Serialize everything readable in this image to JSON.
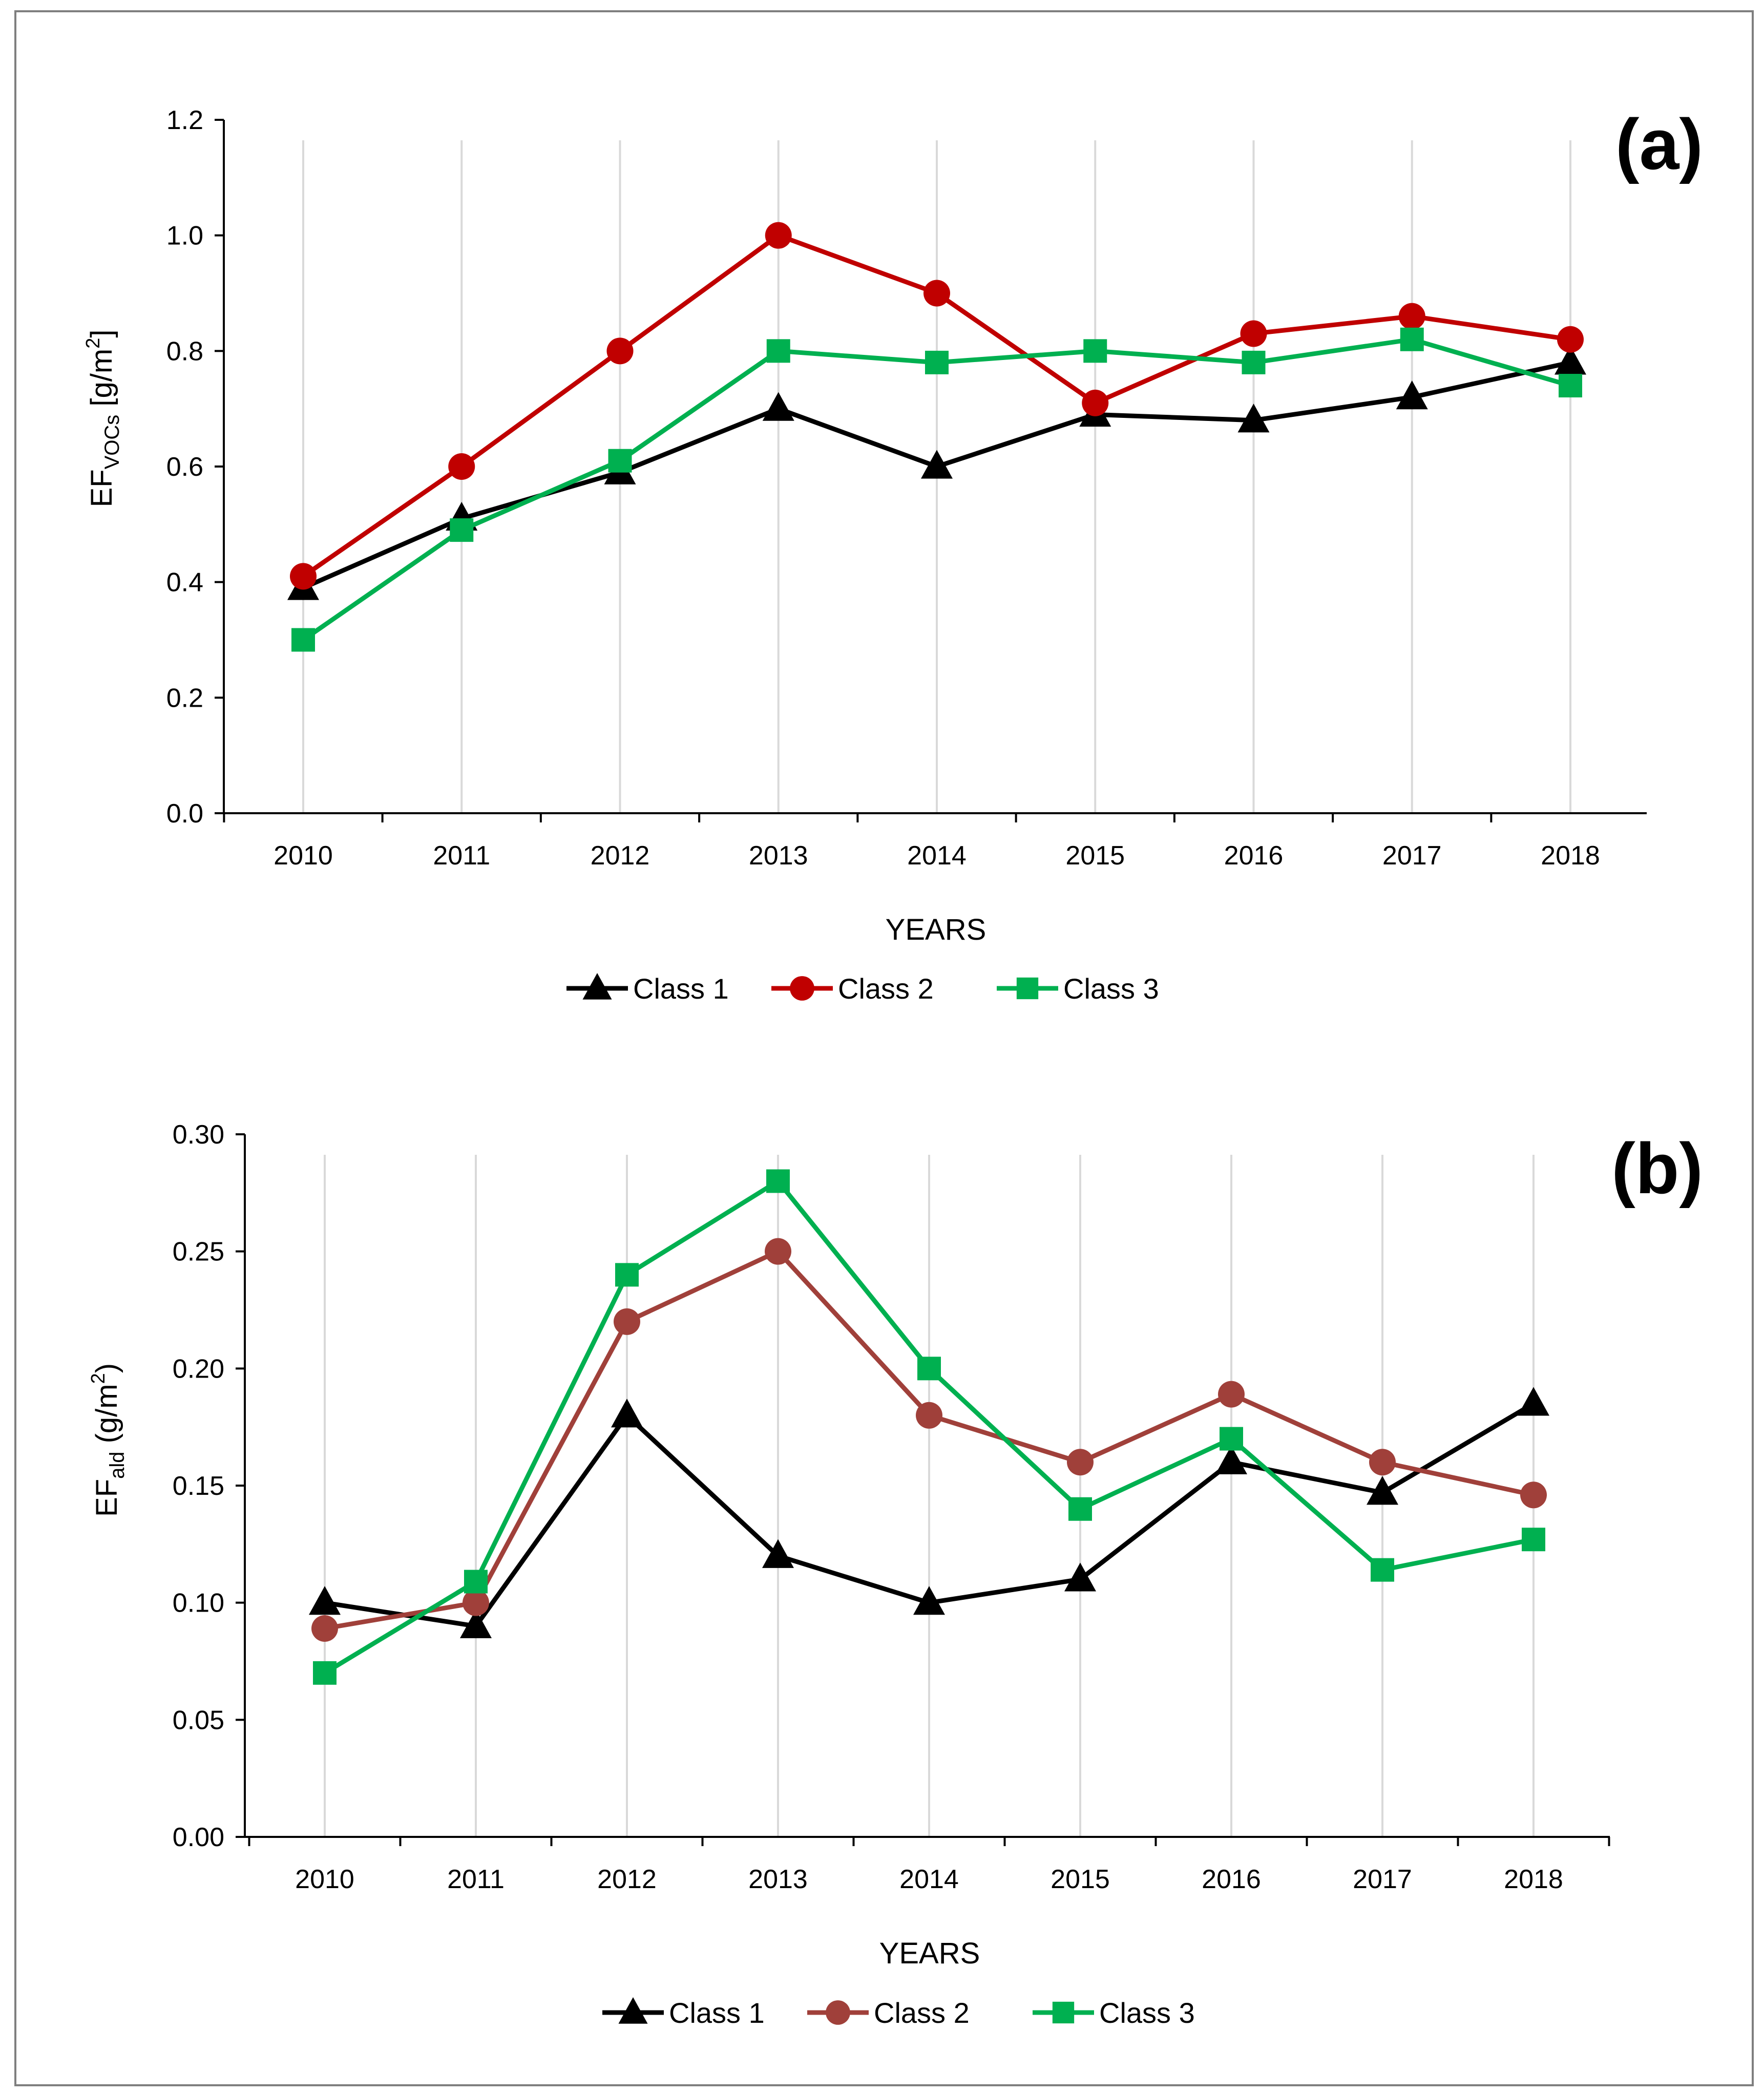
{
  "chart_data": [
    {
      "type": "line",
      "panel_label": "(a)",
      "categories": [
        "2010",
        "2011",
        "2012",
        "2013",
        "2014",
        "2015",
        "2016",
        "2017",
        "2018"
      ],
      "xlabel": "YEARS",
      "ylabel_main": "EF",
      "ylabel_sub": "VOCs",
      "ylabel_tail": " [g/m",
      "ylabel_sup": "2",
      "ylabel_end": "]",
      "ylim": [
        0,
        1.2
      ],
      "yticks": [
        0.0,
        0.2,
        0.4,
        0.6,
        0.8,
        1.0,
        1.2
      ],
      "ytick_labels": [
        "0.0",
        "0.2",
        "0.4",
        "0.6",
        "0.8",
        "1.0",
        "1.2"
      ],
      "grid": "vertical",
      "legend_position": "bottom",
      "series": [
        {
          "name": "Class 1",
          "color": "#000000",
          "marker": "triangle",
          "values": [
            0.39,
            0.51,
            0.59,
            0.7,
            0.6,
            0.69,
            0.68,
            0.72,
            0.78
          ]
        },
        {
          "name": "Class 2",
          "color": "#c00000",
          "marker": "circle",
          "values": [
            0.41,
            0.6,
            0.8,
            1.0,
            0.9,
            0.71,
            0.83,
            0.86,
            0.82
          ]
        },
        {
          "name": "Class 3",
          "color": "#00b050",
          "marker": "square",
          "values": [
            0.3,
            0.49,
            0.61,
            0.8,
            0.78,
            0.8,
            0.78,
            0.82,
            0.74
          ]
        }
      ]
    },
    {
      "type": "line",
      "panel_label": "(b)",
      "categories": [
        "2010",
        "2011",
        "2012",
        "2013",
        "2014",
        "2015",
        "2016",
        "2017",
        "2018"
      ],
      "xlabel": "YEARS",
      "ylabel_main": "EF",
      "ylabel_sub": "ald",
      "ylabel_tail": " (g/m",
      "ylabel_sup": "2",
      "ylabel_end": ")",
      "ylim": [
        0,
        0.3
      ],
      "yticks": [
        0.0,
        0.05,
        0.1,
        0.15,
        0.2,
        0.25,
        0.3
      ],
      "ytick_labels": [
        "0.00",
        "0.05",
        "0.10",
        "0.15",
        "0.20",
        "0.25",
        "0.30"
      ],
      "grid": "vertical",
      "legend_position": "bottom",
      "series": [
        {
          "name": "Class 1",
          "color": "#000000",
          "marker": "triangle",
          "values": [
            0.1,
            0.09,
            0.18,
            0.12,
            0.1,
            0.11,
            0.16,
            0.147,
            0.185
          ]
        },
        {
          "name": "Class 2",
          "color": "#a0403a",
          "marker": "circle",
          "values": [
            0.089,
            0.1,
            0.22,
            0.25,
            0.18,
            0.16,
            0.189,
            0.16,
            0.146
          ]
        },
        {
          "name": "Class 3",
          "color": "#00b050",
          "marker": "square",
          "values": [
            0.07,
            0.109,
            0.24,
            0.28,
            0.2,
            0.14,
            0.17,
            0.114,
            0.127
          ]
        }
      ]
    }
  ]
}
